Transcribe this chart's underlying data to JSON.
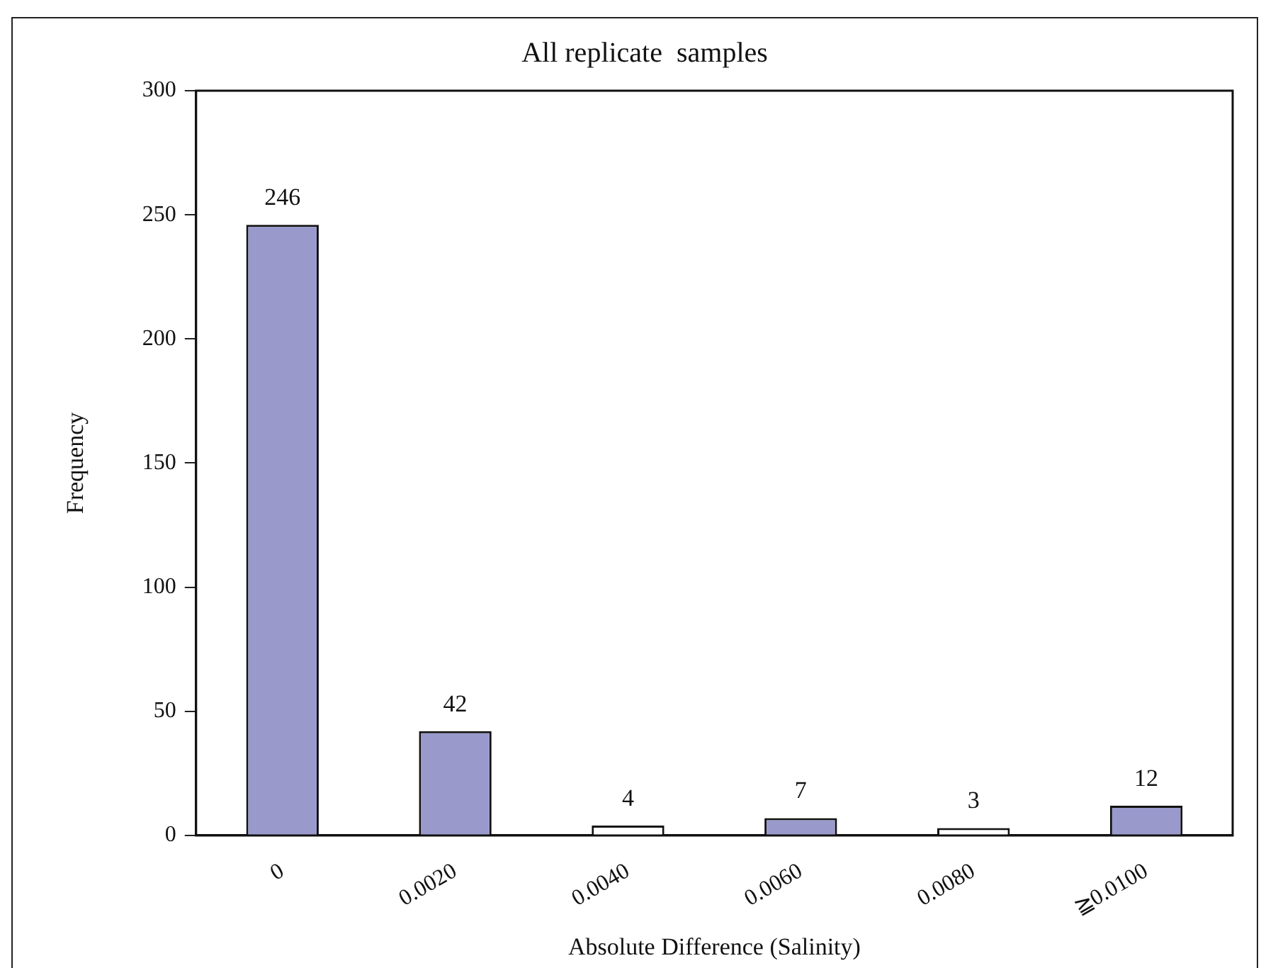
{
  "chart_data": {
    "type": "bar",
    "title": "All replicate  samples",
    "xlabel": "Absolute Difference (Salinity)",
    "ylabel": "Frequency",
    "categories": [
      "0",
      "0.0020",
      "0.0040",
      "0.0060",
      "0.0080",
      "≧0.0100"
    ],
    "values": [
      246,
      42,
      4,
      7,
      3,
      12
    ],
    "colors": [
      "#9999cc",
      "#9999cc",
      "#ffffff",
      "#9999cc",
      "#ffffff",
      "#9999cc"
    ],
    "ylim": [
      0,
      300
    ],
    "yticks": [
      0,
      50,
      100,
      150,
      200,
      250,
      300
    ],
    "grid": false,
    "legend": false,
    "data_labels": true
  }
}
